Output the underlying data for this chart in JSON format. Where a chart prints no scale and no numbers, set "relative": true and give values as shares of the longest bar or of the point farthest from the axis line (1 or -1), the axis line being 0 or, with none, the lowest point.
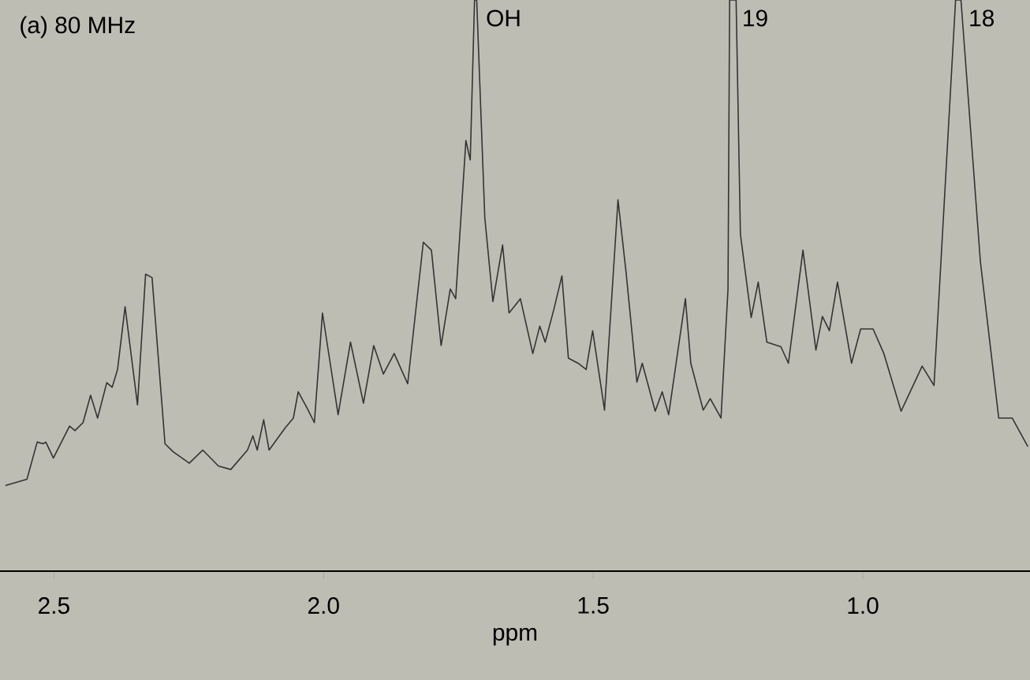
{
  "chart_data": {
    "type": "line",
    "relative": true,
    "xlabel": "ppm",
    "xlim": [
      2.6,
      0.69
    ],
    "xticks": [
      2.5,
      {
        "value": 2.0,
        "label": "2.0"
      },
      1.5,
      {
        "value": 1.0,
        "label": "1.0"
      }
    ],
    "annotations": [
      "(a)  80 MHz",
      {
        "text": "OH",
        "x": 1.72,
        "y": 1
      },
      {
        "text": "19",
        "x": 1.245,
        "y": 1
      },
      {
        "text": "18",
        "x": 0.825,
        "y": 1
      }
    ],
    "series": [
      {
        "color": "#333333",
        "x": [
          2.59,
          2.55,
          2.531,
          2.52,
          2.515,
          2.501,
          2.471,
          2.461,
          2.446,
          2.432,
          2.419,
          2.402,
          2.392,
          2.382,
          2.368,
          2.345,
          2.33,
          2.318,
          2.294,
          2.279,
          2.249,
          2.224,
          2.195,
          2.172,
          2.141,
          2.131,
          2.123,
          2.111,
          2.101,
          2.071,
          2.056,
          2.047,
          2.032,
          2.017,
          2.002,
          1.973,
          1.95,
          1.926,
          1.907,
          1.889,
          1.869,
          1.844,
          1.815,
          1.8,
          1.782,
          1.765,
          1.755,
          1.736,
          1.728,
          1.72,
          1.716,
          1.701,
          1.686,
          1.668,
          1.656,
          1.635,
          1.612,
          1.599,
          1.589,
          1.573,
          1.558,
          1.546,
          1.528,
          1.513,
          1.501,
          1.479,
          1.454,
          1.439,
          1.419,
          1.409,
          1.385,
          1.372,
          1.36,
          1.329,
          1.319,
          1.296,
          1.283,
          1.263,
          1.25,
          1.247,
          1.235,
          1.227,
          1.207,
          1.194,
          1.178,
          1.152,
          1.138,
          1.111,
          1.087,
          1.075,
          1.062,
          1.047,
          1.021,
          1.004,
          0.981,
          0.961,
          0.929,
          0.89,
          0.868,
          0.828,
          0.818,
          0.782,
          0.748,
          0.723,
          0.694
        ],
        "values": [
          0.15,
          0.161,
          0.226,
          0.223,
          0.226,
          0.198,
          0.254,
          0.246,
          0.26,
          0.308,
          0.268,
          0.33,
          0.322,
          0.353,
          0.463,
          0.291,
          0.52,
          0.514,
          0.223,
          0.209,
          0.189,
          0.212,
          0.184,
          0.178,
          0.212,
          0.237,
          0.212,
          0.265,
          0.212,
          0.251,
          0.268,
          0.314,
          0.288,
          0.26,
          0.452,
          0.274,
          0.401,
          0.294,
          0.395,
          0.345,
          0.381,
          0.328,
          0.576,
          0.562,
          0.395,
          0.494,
          0.477,
          0.754,
          0.72,
          1.0,
          1.0,
          0.619,
          0.472,
          0.571,
          0.452,
          0.477,
          0.381,
          0.429,
          0.401,
          0.458,
          0.517,
          0.373,
          0.364,
          0.353,
          0.421,
          0.282,
          0.65,
          0.523,
          0.331,
          0.364,
          0.28,
          0.314,
          0.274,
          0.477,
          0.364,
          0.282,
          0.302,
          0.268,
          0.494,
          1.0,
          1.0,
          0.59,
          0.444,
          0.506,
          0.401,
          0.393,
          0.364,
          0.562,
          0.387,
          0.446,
          0.421,
          0.506,
          0.364,
          0.424,
          0.424,
          0.381,
          0.28,
          0.359,
          0.325,
          1.0,
          1.0,
          0.542,
          0.268,
          0.268,
          0.218
        ]
      }
    ]
  }
}
